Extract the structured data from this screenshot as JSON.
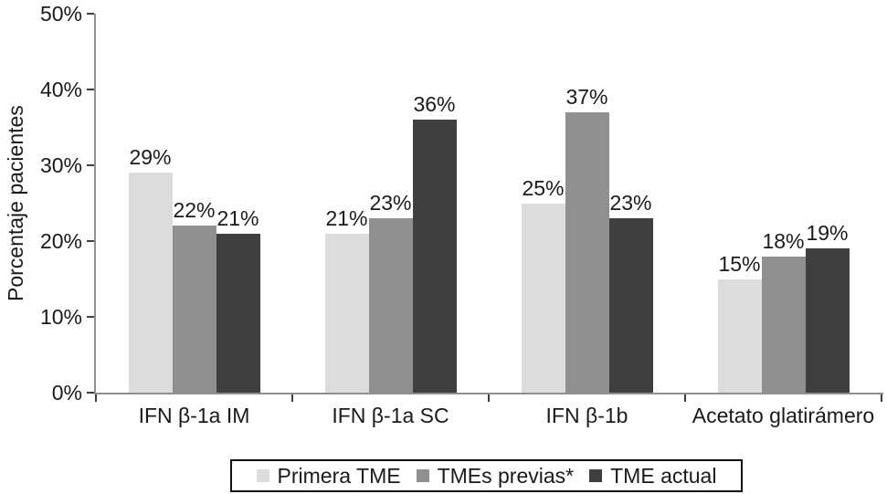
{
  "chart_data": {
    "type": "bar",
    "title": "",
    "xlabel": "",
    "ylabel": "Porcentaje pacientes",
    "ylim": [
      0,
      50
    ],
    "yticks": [
      "0%",
      "10%",
      "20%",
      "30%",
      "40%",
      "50%"
    ],
    "grid": false,
    "legend_position": "bottom",
    "value_label_format": "{v}%",
    "categories": [
      "IFN β-1a IM",
      "IFN β-1a SC",
      "IFN β-1b",
      "Acetato glatirámero"
    ],
    "series": [
      {
        "name": "Primera TME",
        "color": "#dcdcdc",
        "values": [
          29,
          21,
          25,
          15
        ]
      },
      {
        "name": "TMEs previas*",
        "color": "#8f8f8f",
        "values": [
          22,
          23,
          37,
          18
        ]
      },
      {
        "name": "TME actual",
        "color": "#3f3f3f",
        "values": [
          21,
          36,
          23,
          19
        ]
      }
    ],
    "colors": {
      "axis": "#8f8f8f",
      "tick": "#3e3e3e",
      "text": "#1a1a1a",
      "legend_border": "#111111"
    }
  }
}
